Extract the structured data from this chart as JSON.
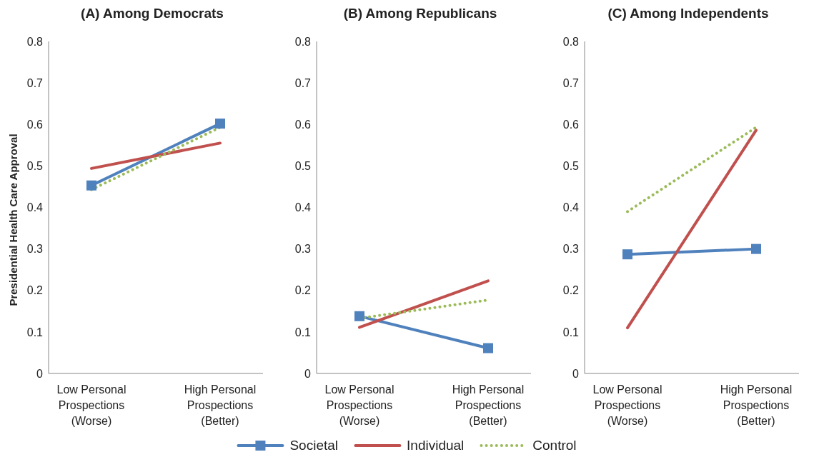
{
  "chart_data": [
    {
      "type": "line",
      "title": "(A) Among Democrats",
      "ylabel": "Presidential Health Care Approval",
      "categories": [
        "Low Personal\nProspections\n(Worse)",
        "High Personal\nProspections\n(Better)"
      ],
      "ylim": [
        0,
        0.8
      ],
      "yticks": [
        0,
        0.1,
        0.2,
        0.3,
        0.4,
        0.5,
        0.6,
        0.7,
        0.8
      ],
      "grid": false,
      "series": [
        {
          "color": "#4f81bd",
          "values": [
            0.453,
            0.602
          ],
          "marker": "square",
          "line_style": "solid"
        },
        {
          "color": "#c0504d",
          "values": [
            0.494,
            0.555
          ],
          "marker": "none",
          "line_style": "solid"
        },
        {
          "color": "#9bbb59",
          "values": [
            0.443,
            0.593
          ],
          "marker": "none",
          "line_style": "dotted"
        }
      ]
    },
    {
      "type": "line",
      "title": "(B) Among Republicans",
      "categories": [
        "Low Personal\nProspections\n(Worse)",
        "High Personal\nProspections\n(Better)"
      ],
      "ylim": [
        0,
        0.8
      ],
      "yticks": [
        0,
        0.1,
        0.2,
        0.3,
        0.4,
        0.5,
        0.6,
        0.7,
        0.8
      ],
      "grid": false,
      "legend": "bottom",
      "series": [
        {
          "name": "Societal",
          "color": "#4f81bd",
          "values": [
            0.138,
            0.061
          ],
          "marker": "square",
          "line_style": "solid"
        },
        {
          "name": "Individual",
          "color": "#c0504d",
          "values": [
            0.111,
            0.223
          ],
          "marker": "none",
          "line_style": "solid"
        },
        {
          "name": "Control",
          "color": "#9bbb59",
          "values": [
            0.133,
            0.177
          ],
          "marker": "none",
          "line_style": "dotted"
        }
      ]
    },
    {
      "type": "line",
      "title": "(C) Among Independents",
      "categories": [
        "Low Personal\nProspections\n(Worse)",
        "High Personal\nProspections\n(Better)"
      ],
      "ylim": [
        0,
        0.8
      ],
      "yticks": [
        0,
        0.1,
        0.2,
        0.3,
        0.4,
        0.5,
        0.6,
        0.7,
        0.8
      ],
      "grid": false,
      "series": [
        {
          "color": "#4f81bd",
          "values": [
            0.287,
            0.3
          ],
          "marker": "square",
          "line_style": "solid"
        },
        {
          "color": "#c0504d",
          "values": [
            0.11,
            0.586
          ],
          "marker": "none",
          "line_style": "solid"
        },
        {
          "color": "#9bbb59",
          "values": [
            0.39,
            0.593
          ],
          "marker": "none",
          "line_style": "dotted"
        }
      ]
    }
  ]
}
